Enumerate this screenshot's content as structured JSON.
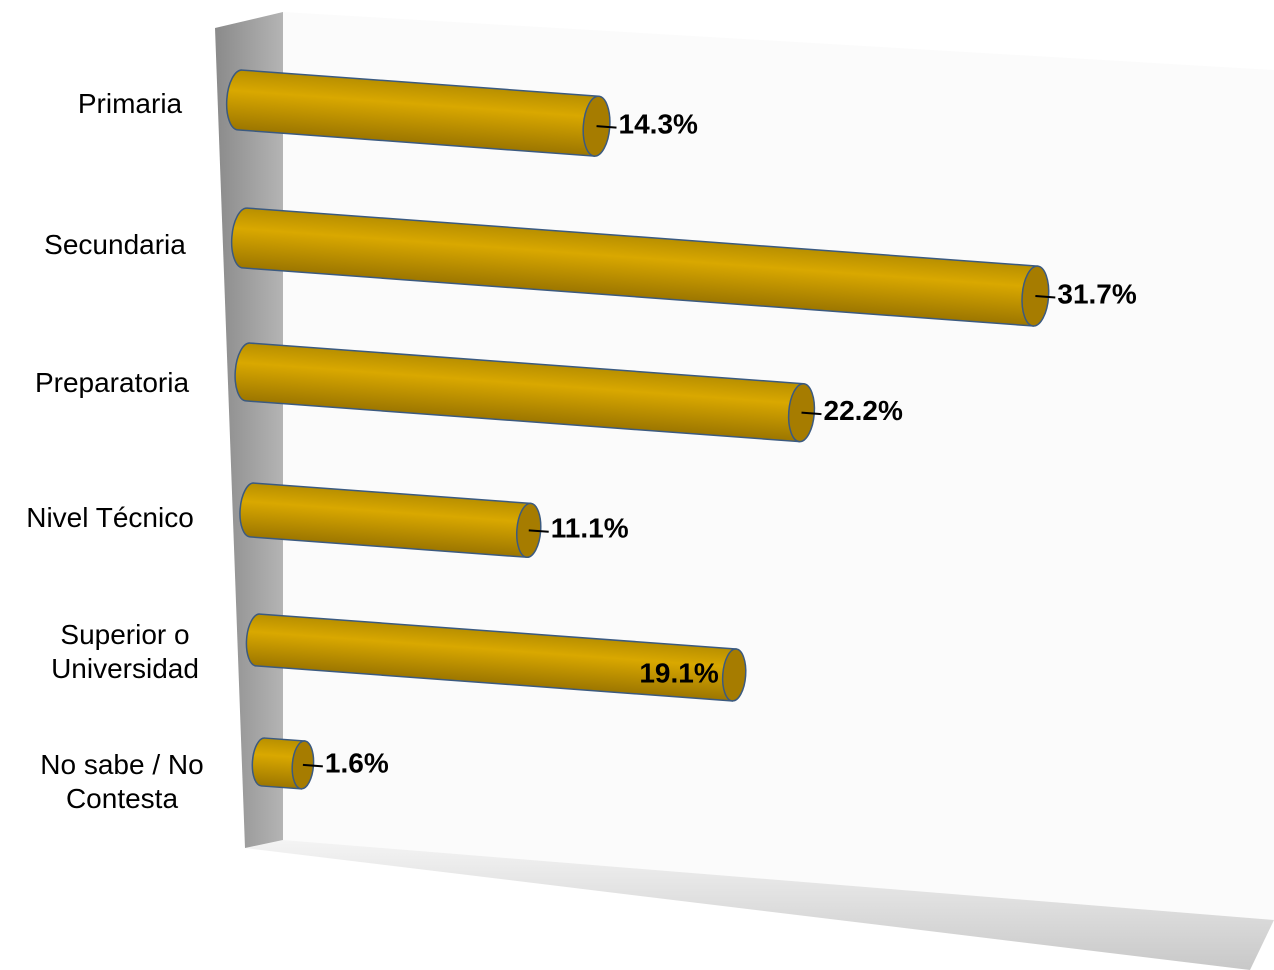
{
  "chart_data": {
    "type": "bar",
    "orientation": "horizontal",
    "color": "#d4a300",
    "categories": [
      "Primaria",
      "Secundaria",
      "Preparatoria",
      "Nivel Técnico",
      "Superior o Universidad",
      "No sabe / No Contesta"
    ],
    "values": [
      14.3,
      31.7,
      22.2,
      11.1,
      19.1,
      1.6
    ],
    "value_labels": [
      "14.3%",
      "31.7%",
      "22.2%",
      "11.1%",
      "19.1%",
      "1.6%"
    ]
  }
}
